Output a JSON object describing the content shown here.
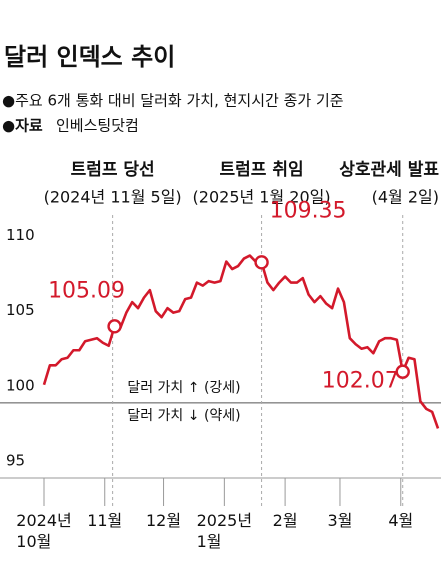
{
  "chart_data": {
    "type": "line",
    "title": "달러 인덱스 추이",
    "note": "●주요 6개 통화 대비 달러화 가치, 현지시간 종가 기준",
    "source_label": "●자료",
    "source": "인베스팅닷컴",
    "color": "#d3192b",
    "values": [
      101.2,
      102.5,
      102.5,
      102.9,
      103.0,
      103.5,
      103.5,
      104.1,
      104.2,
      104.3,
      104.0,
      103.8,
      105.09,
      105.0,
      106.0,
      106.7,
      106.3,
      107.0,
      107.5,
      106.1,
      105.7,
      106.3,
      106.0,
      106.1,
      106.9,
      107.0,
      108.0,
      107.8,
      108.1,
      108.0,
      108.1,
      109.4,
      108.9,
      109.1,
      109.6,
      109.8,
      109.4,
      109.35,
      108.0,
      107.5,
      108.0,
      108.4,
      108.0,
      108.0,
      108.3,
      107.2,
      106.7,
      107.1,
      106.6,
      106.3,
      107.6,
      106.7,
      104.3,
      103.9,
      103.6,
      103.7,
      103.3,
      104.1,
      104.3,
      104.3,
      104.2,
      102.07,
      103.0,
      102.9,
      100.1,
      99.6,
      99.4,
      98.3
    ],
    "highlight": [
      12,
      37,
      61
    ],
    "xlim": [
      0,
      67
    ],
    "xticks": [
      {
        "value": 0,
        "label": "2024년\n10월"
      },
      {
        "value": 10.33,
        "label": "11월"
      },
      {
        "value": 20.33,
        "label": "12월"
      },
      {
        "value": 30.67,
        "label": "2025년\n1월"
      },
      {
        "value": 41,
        "label": "2월"
      },
      {
        "value": 50.33,
        "label": "3월"
      },
      {
        "value": 60.67,
        "label": "4월"
      }
    ],
    "ylim": [
      95,
      111.5
    ],
    "yticks": [
      95,
      100,
      105,
      110
    ],
    "reference_line": 100,
    "events": [
      {
        "at": 11.67,
        "title": "트럼프 당선",
        "date": "(2024년 11월 5일)"
      },
      {
        "at": 37,
        "title": "트럼프 취임",
        "date": "(2025년 1월 20일)"
      },
      {
        "at": 61,
        "title": "상호관세 발표",
        "date": "(4월 2일)"
      }
    ],
    "annotations": [
      "달러 가치 ↑ (강세)",
      "달러 가치 ↓ (약세)"
    ]
  }
}
